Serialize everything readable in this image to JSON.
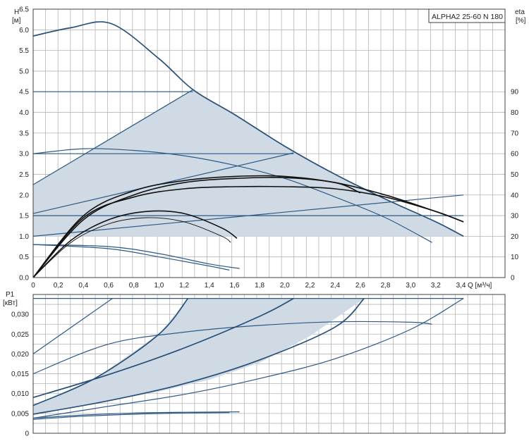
{
  "title": "ALPHA2 25-60 N 180",
  "top": {
    "ylabel_left": [
      "H",
      "[м]"
    ],
    "ylabel_right": [
      "eta",
      "[%]"
    ],
    "xlabel": "Q [м³/ч]",
    "xlim": [
      0,
      3.75
    ],
    "ylim": [
      0,
      6.5
    ],
    "yticks": [
      "0.0",
      "0.5",
      "1.0",
      "1.5",
      "2.0",
      "2.5",
      "3.0",
      "3.5",
      "4.0",
      "4.5",
      "5.0",
      "5.5",
      "6.0",
      "6.5"
    ],
    "yticks_right": [
      "0",
      "10",
      "20",
      "30",
      "40",
      "50",
      "60",
      "70",
      "80",
      "90"
    ],
    "xticks": [
      "0",
      "0,2",
      "0,4",
      "0,6",
      "0,8",
      "1,0",
      "1,2",
      "1,4",
      "1,6",
      "1,8",
      "2,0",
      "2,2",
      "2,4",
      "2,6",
      "2,8",
      "3,0",
      "3,2",
      "3,4"
    ]
  },
  "bottom": {
    "ylabel": [
      "P1",
      "[кВт]"
    ],
    "xlim": [
      0,
      3.75
    ],
    "ylim": [
      0,
      0.035
    ],
    "yticks": [
      "0",
      "0,005",
      "0,010",
      "0,015",
      "0,020",
      "0,025",
      "0,030"
    ]
  },
  "colors": {
    "curve": "#2d5a85",
    "area": "#cfdae5",
    "efficiency": "#111111",
    "grid": "#b4b4b4"
  },
  "chart_data": [
    {
      "type": "line",
      "ylabel": "H [м]",
      "xlabel": "Q [м³/ч]",
      "grid": true,
      "shaded_area": [
        [
          0,
          1.0
        ],
        [
          0,
          2.25
        ],
        [
          1.27,
          4.55
        ],
        [
          1.6,
          3.95
        ],
        [
          2.0,
          3.18
        ],
        [
          2.4,
          2.5
        ],
        [
          2.8,
          1.9
        ],
        [
          3.2,
          1.35
        ],
        [
          3.42,
          1.0
        ]
      ],
      "series": [
        {
          "x": [
            0,
            0.3,
            0.62,
            1.0,
            1.27,
            1.6,
            2.0,
            2.4,
            2.8,
            3.2,
            3.42
          ],
          "y": [
            5.85,
            6.05,
            6.15,
            5.3,
            4.55,
            3.95,
            3.18,
            2.5,
            1.9,
            1.35,
            1.0
          ]
        },
        {
          "x": [
            0,
            1.27
          ],
          "y": [
            4.5,
            4.5
          ]
        },
        {
          "x": [
            0,
            1.27
          ],
          "y": [
            2.25,
            4.55
          ]
        },
        {
          "x": [
            0,
            2.07
          ],
          "y": [
            3.0,
            3.0
          ]
        },
        {
          "x": [
            0,
            2.07
          ],
          "y": [
            1.55,
            3.02
          ]
        },
        {
          "x": [
            0,
            3.42
          ],
          "y": [
            1.5,
            1.5
          ]
        },
        {
          "x": [
            0,
            3.42
          ],
          "y": [
            1.0,
            2.0
          ]
        },
        {
          "x": [
            0,
            0.4,
            0.8,
            1.2,
            1.6,
            2.0,
            2.4,
            2.8,
            3.17
          ],
          "y": [
            3.0,
            3.12,
            3.08,
            2.95,
            2.72,
            2.4,
            1.95,
            1.45,
            0.85
          ]
        },
        {
          "x": [
            0,
            0.6,
            1.0,
            1.4,
            1.64
          ],
          "y": [
            0.8,
            0.75,
            0.58,
            0.33,
            0.22
          ]
        },
        {
          "x": [
            0,
            0.6,
            1.0,
            1.4,
            1.56
          ],
          "y": [
            0.8,
            0.7,
            0.5,
            0.28,
            0.18
          ]
        }
      ],
      "efficiency_series": [
        {
          "x": [
            0,
            0.4,
            0.8,
            1.2,
            1.6,
            2.0,
            2.4,
            2.8,
            3.2,
            3.42
          ],
          "y": [
            0,
            1.5,
            2.1,
            2.35,
            2.45,
            2.45,
            2.3,
            2.0,
            1.6,
            1.35
          ]
        },
        {
          "x": [
            0,
            0.4,
            0.8,
            1.2,
            1.6,
            2.0,
            2.4,
            2.8,
            3.2,
            3.42
          ],
          "y": [
            0,
            1.45,
            1.95,
            2.15,
            2.2,
            2.2,
            2.15,
            1.95,
            1.6,
            1.35
          ]
        },
        {
          "x": [
            0,
            0.4,
            0.8,
            1.2,
            1.6,
            2.0,
            2.4,
            2.6
          ],
          "y": [
            0,
            1.4,
            2.0,
            2.3,
            2.4,
            2.42,
            2.3,
            2.05
          ]
        },
        {
          "x": [
            0,
            0.3,
            0.6,
            0.9,
            1.2,
            1.5,
            1.62
          ],
          "y": [
            0,
            0.9,
            1.4,
            1.6,
            1.55,
            1.2,
            0.95
          ]
        },
        {
          "x": [
            0,
            0.3,
            0.6,
            0.9,
            1.2,
            1.5,
            1.57
          ],
          "y": [
            0,
            0.85,
            1.3,
            1.45,
            1.35,
            1.0,
            0.85
          ]
        }
      ]
    },
    {
      "type": "line",
      "ylabel": "P1 [кВт]",
      "grid": true,
      "shaded_area": [
        [
          0,
          0.0048
        ],
        [
          0,
          0.007
        ],
        [
          0.5,
          0.014
        ],
        [
          1.0,
          0.025
        ],
        [
          1.23,
          0.034
        ],
        [
          2.63,
          0.034
        ],
        [
          2.2,
          0.0245
        ],
        [
          1.8,
          0.0178
        ],
        [
          1.4,
          0.0135
        ],
        [
          1.0,
          0.0105
        ],
        [
          0.6,
          0.0082
        ],
        [
          0.3,
          0.0065
        ]
      ],
      "series": [
        {
          "x": [
            0,
            3.42
          ],
          "y": [
            0.034,
            0.034
          ]
        },
        {
          "x": [
            0,
            0.63
          ],
          "y": [
            0.02,
            0.034
          ]
        },
        {
          "x": [
            0,
            0.6,
            1.2,
            1.8,
            2.4,
            3.0,
            3.17
          ],
          "y": [
            0.015,
            0.0225,
            0.0255,
            0.0272,
            0.0281,
            0.028,
            0.0275
          ]
        },
        {
          "x": [
            0,
            0.5,
            1.0,
            1.23
          ],
          "y": [
            0.007,
            0.014,
            0.025,
            0.034
          ]
        },
        {
          "x": [
            0,
            0.6,
            1.2,
            1.8,
            2.07
          ],
          "y": [
            0.009,
            0.0148,
            0.0215,
            0.0295,
            0.034
          ]
        },
        {
          "x": [
            0,
            0.6,
            1.2,
            1.8,
            2.4,
            2.63
          ],
          "y": [
            0.0048,
            0.0082,
            0.0125,
            0.0185,
            0.0268,
            0.034
          ]
        },
        {
          "x": [
            0,
            0.6,
            1.2,
            1.8,
            2.4,
            3.0,
            3.42
          ],
          "y": [
            0.0038,
            0.0068,
            0.0098,
            0.0138,
            0.0188,
            0.0262,
            0.034
          ]
        },
        {
          "x": [
            0,
            0.4,
            0.8,
            1.2,
            1.64
          ],
          "y": [
            0.0038,
            0.0046,
            0.0051,
            0.0053,
            0.0054
          ]
        },
        {
          "x": [
            0,
            0.4,
            0.8,
            1.2,
            1.56
          ],
          "y": [
            0.0035,
            0.0043,
            0.0048,
            0.0051,
            0.0052
          ]
        }
      ]
    }
  ]
}
